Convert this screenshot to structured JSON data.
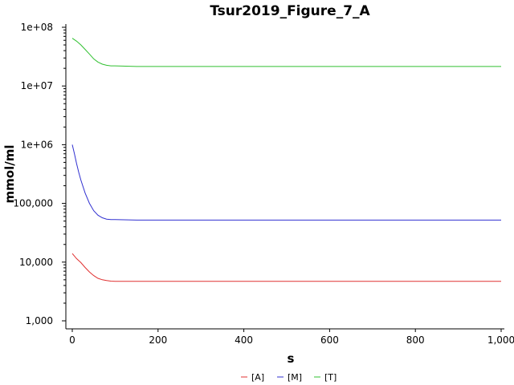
{
  "chart_data": {
    "type": "line",
    "title": "Tsur2019_Figure_7_A",
    "xlabel": "s",
    "ylabel": "mmol/ml",
    "xlim": [
      0,
      1000
    ],
    "ylim": [
      1000,
      100000000
    ],
    "y_scale": "log",
    "grid": false,
    "legend_position": "bottom-center",
    "x_ticks": [
      0,
      200,
      400,
      600,
      800,
      1000
    ],
    "x_tick_labels": [
      "0",
      "200",
      "400",
      "600",
      "800",
      "1,000"
    ],
    "y_ticks": [
      1000,
      10000,
      100000,
      1000000,
      10000000,
      100000000
    ],
    "y_tick_labels": [
      "1,000",
      "10,000",
      "100,000",
      "1e+06",
      "1e+07",
      "1e+08"
    ],
    "series": [
      {
        "name": "[A]",
        "color": "#e03030",
        "x": [
          0,
          10,
          20,
          30,
          40,
          50,
          60,
          70,
          80,
          90,
          100,
          150,
          200,
          300,
          400,
          500,
          600,
          700,
          800,
          900,
          1000
        ],
        "y": [
          14000,
          11500,
          9800,
          8100,
          6800,
          5900,
          5300,
          5000,
          4850,
          4750,
          4700,
          4700,
          4700,
          4700,
          4700,
          4700,
          4700,
          4700,
          4700,
          4700,
          4700
        ]
      },
      {
        "name": "[M]",
        "color": "#3030d0",
        "x": [
          0,
          5,
          10,
          15,
          20,
          30,
          40,
          50,
          60,
          70,
          80,
          90,
          100,
          150,
          200,
          300,
          400,
          500,
          600,
          700,
          800,
          900,
          1000
        ],
        "y": [
          1000000,
          700000,
          480000,
          340000,
          250000,
          150000,
          100000,
          75000,
          63000,
          57000,
          54000,
          53000,
          53000,
          52000,
          52000,
          52000,
          52000,
          52000,
          52000,
          52000,
          52000,
          52000,
          52000
        ]
      },
      {
        "name": "[T]",
        "color": "#30c030",
        "x": [
          0,
          10,
          20,
          30,
          40,
          50,
          60,
          70,
          80,
          90,
          100,
          150,
          200,
          300,
          400,
          500,
          600,
          700,
          800,
          900,
          1000
        ],
        "y": [
          65000000,
          58000000,
          50000000,
          42000000,
          35000000,
          29000000,
          25500000,
          23500000,
          22500000,
          22000000,
          22000000,
          21500000,
          21500000,
          21500000,
          21500000,
          21500000,
          21500000,
          21500000,
          21500000,
          21500000,
          21500000
        ]
      }
    ]
  }
}
